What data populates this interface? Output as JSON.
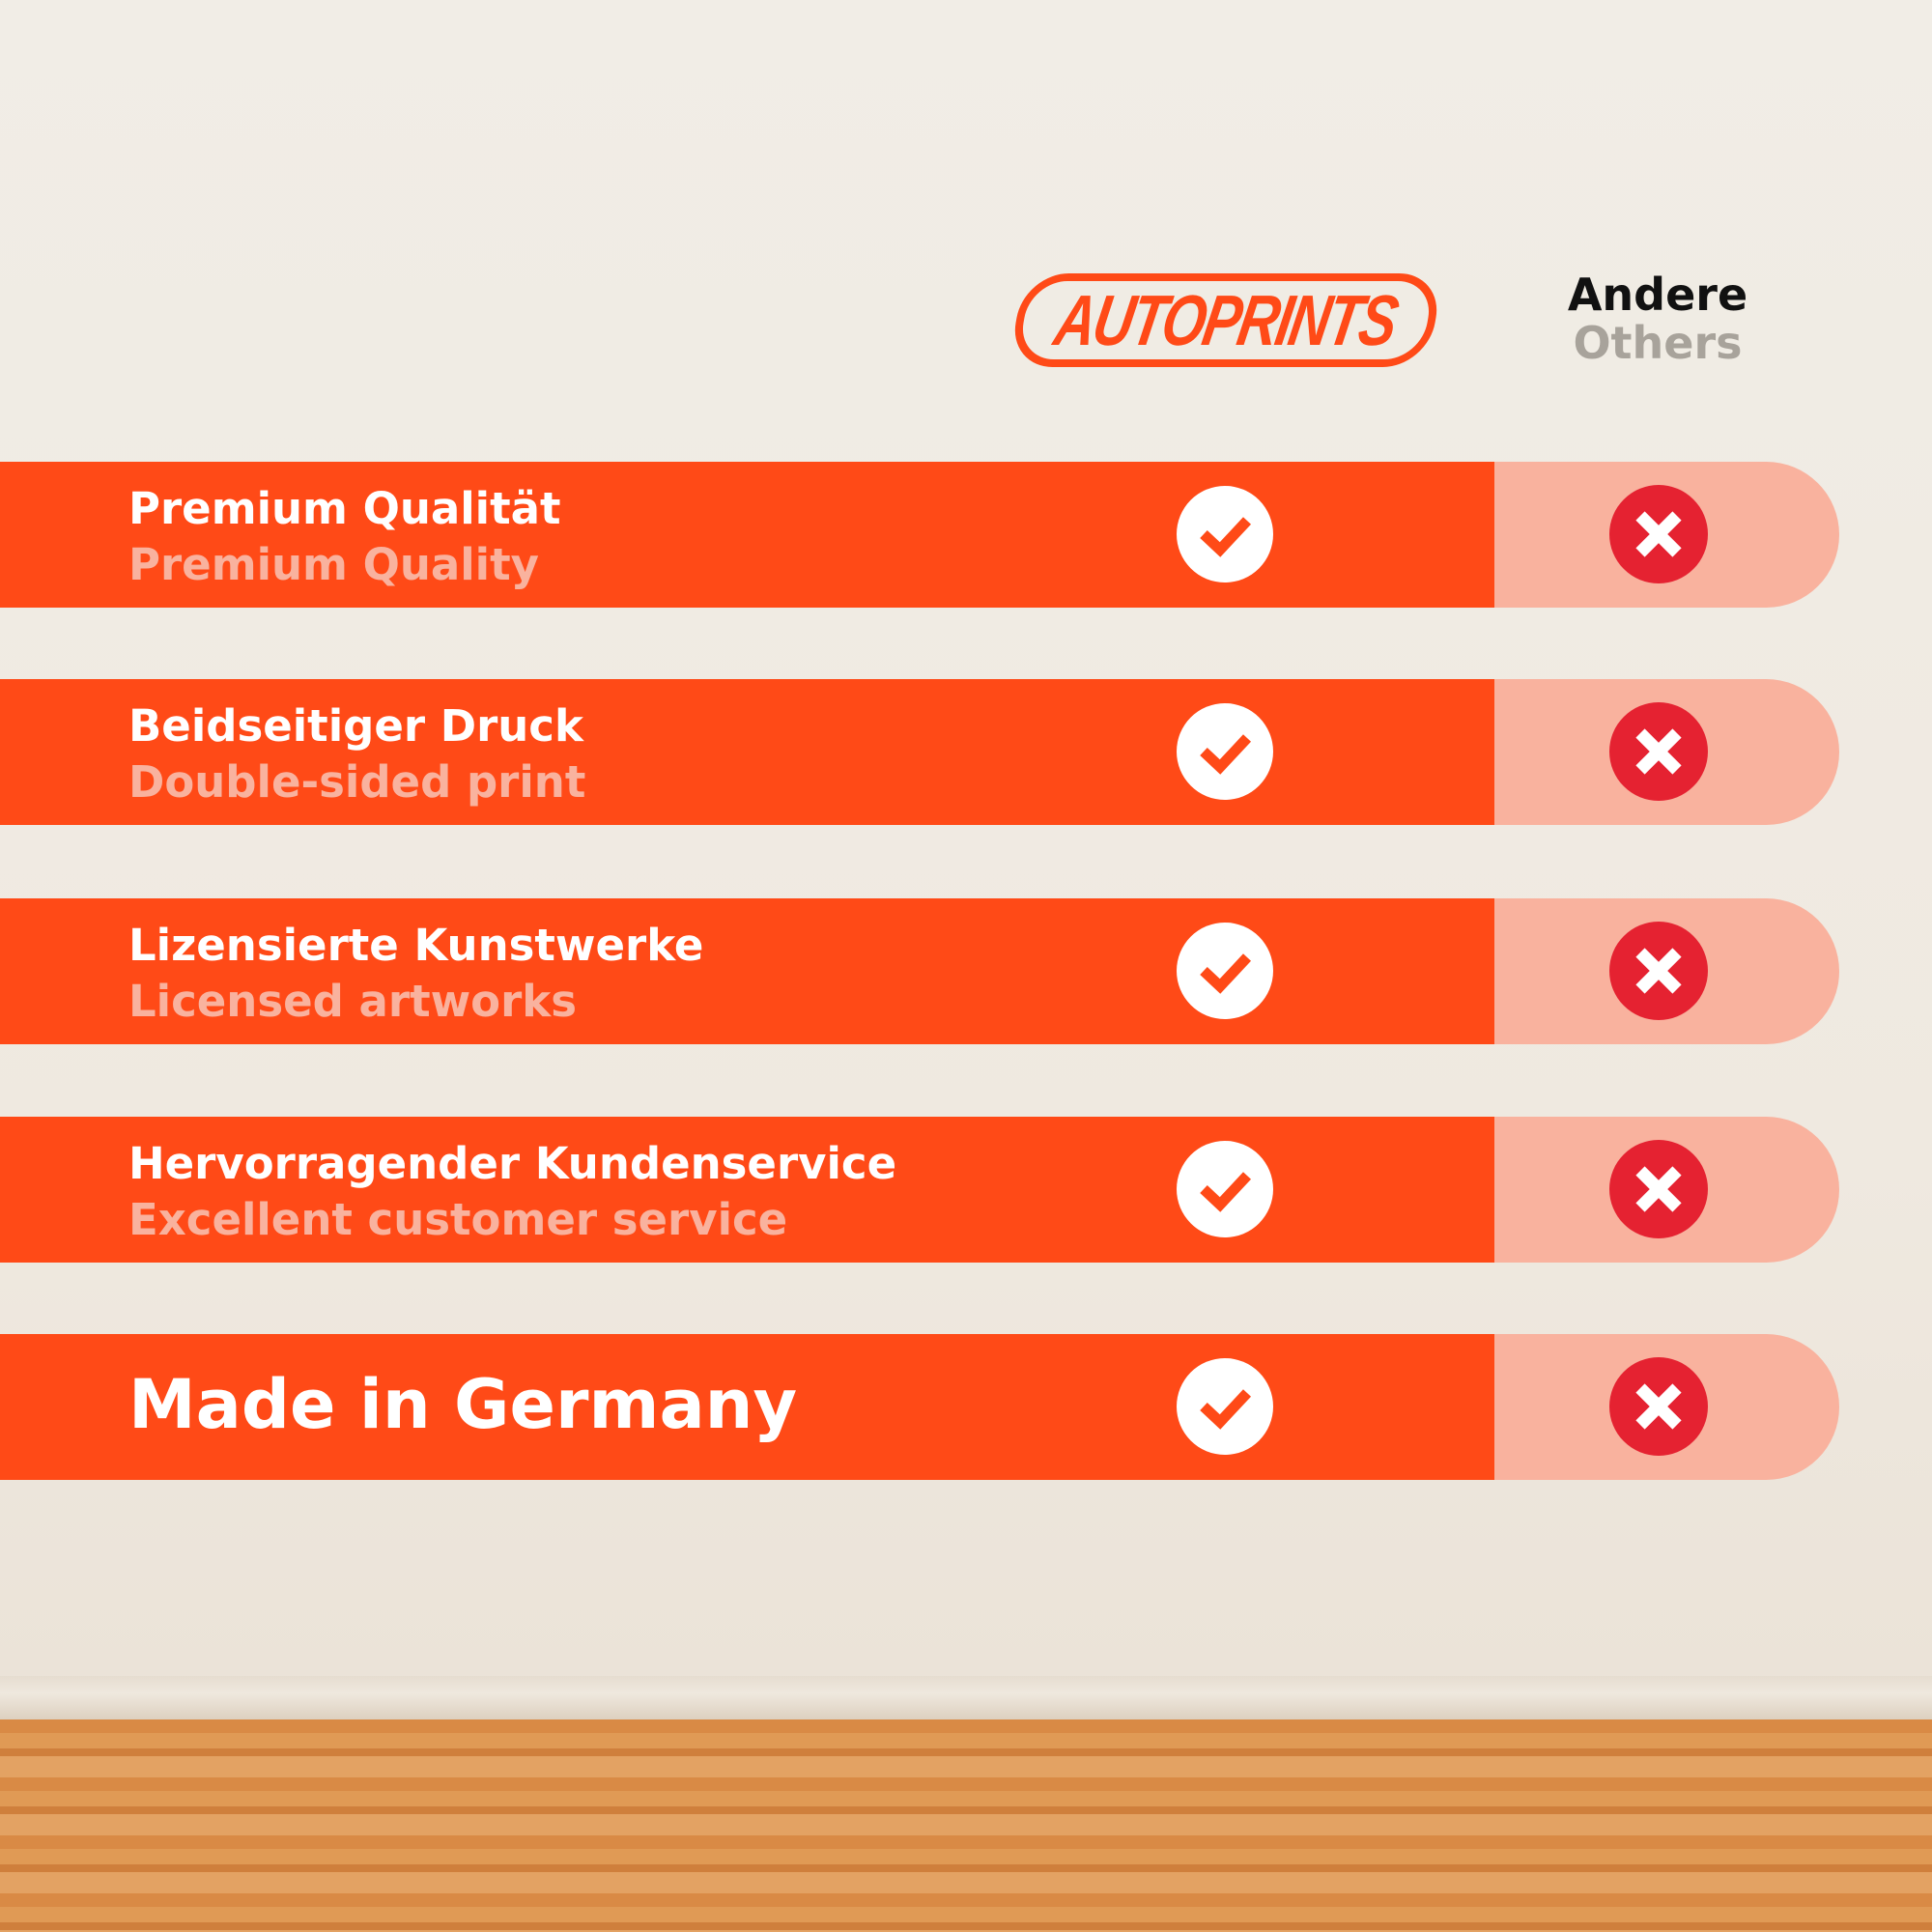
{
  "brand": {
    "logo_text": "AUTOPRINTS",
    "color": "#ff4a17"
  },
  "competitor": {
    "label_de": "Andere",
    "label_en": "Others"
  },
  "colors": {
    "row": "#ff4a17",
    "other_cell": "#f9b29e",
    "cross": "#e52231",
    "subtitle": "#f9b29e"
  },
  "rows": [
    {
      "de": "Premium Qualität",
      "en": "Premium Quality",
      "autoprints": "check-icon",
      "others": "cross-icon"
    },
    {
      "de": "Beidseitiger Druck",
      "en": "Double-sided print",
      "autoprints": "check-icon",
      "others": "cross-icon"
    },
    {
      "de": "Lizensierte Kunstwerke",
      "en": "Licensed artworks",
      "autoprints": "check-icon",
      "others": "cross-icon"
    },
    {
      "de": "Hervorragender Kundenservice",
      "en": "Excellent customer service",
      "autoprints": "check-icon",
      "others": "cross-icon"
    },
    {
      "de": "Made in Germany",
      "autoprints": "check-icon",
      "others": "cross-icon"
    }
  ]
}
